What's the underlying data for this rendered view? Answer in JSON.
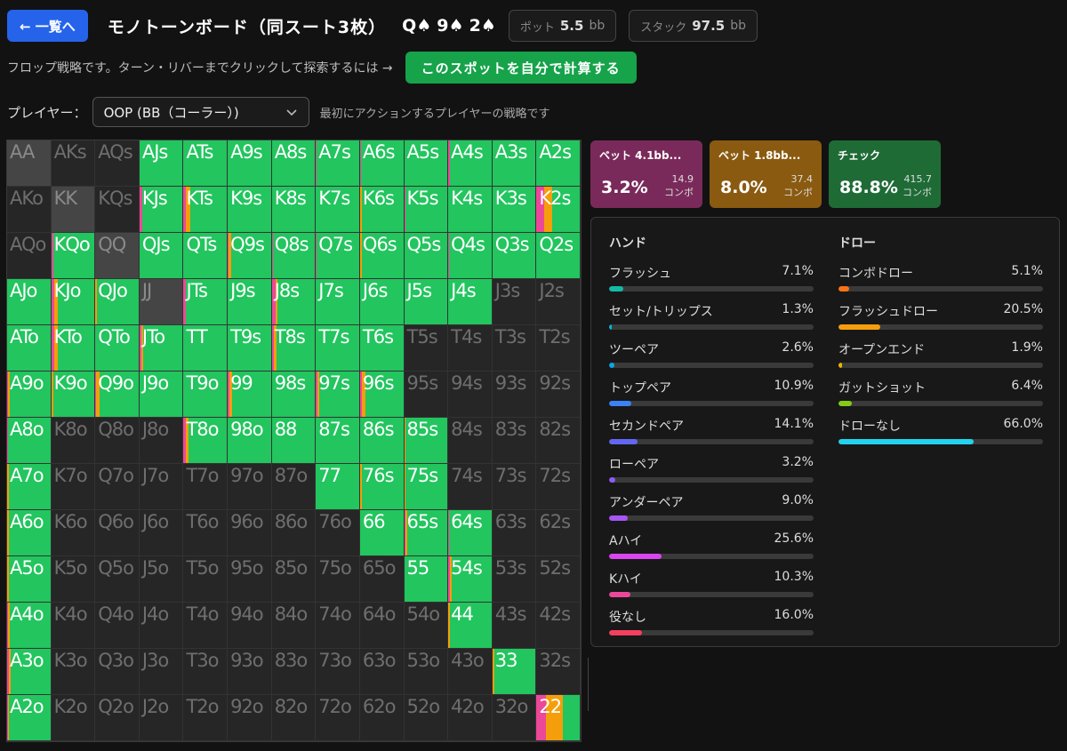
{
  "header": {
    "back_label": "← 一覧へ",
    "title": "モノトーンボード（同スート3枚）",
    "board": [
      {
        "rank": "Q",
        "suit": "♠"
      },
      {
        "rank": "9",
        "suit": "♠"
      },
      {
        "rank": "2",
        "suit": "♠"
      }
    ],
    "pot_label": "ポット",
    "pot_value": "5.5",
    "pot_unit": "bb",
    "stack_label": "スタック",
    "stack_value": "97.5",
    "stack_unit": "bb"
  },
  "hint": {
    "text": "フロップ戦略です。ターン・リバーまでクリックして探索するには →",
    "button_label": "このスポットを自分で計算する"
  },
  "player": {
    "label": "プレイヤー：",
    "selected": "OOP (BB（コーラー）)",
    "description": "最初にアクションするプレイヤーの戦略です"
  },
  "colors": {
    "bet_large": "#ec4899",
    "bet_small": "#f59e0b",
    "check": "#22c55e"
  },
  "actions": [
    {
      "name": "ベット 4.1bb...",
      "pct": "3.2%",
      "combos": "14.9",
      "combo_label": "コンボ",
      "bg": "#7a2a5a"
    },
    {
      "name": "ベット 1.8bb...",
      "pct": "8.0%",
      "combos": "37.4",
      "combo_label": "コンボ",
      "bg": "#8a5a10"
    },
    {
      "name": "チェック",
      "pct": "88.8%",
      "combos": "415.7",
      "combo_label": "コンボ",
      "bg": "#1f6b36"
    }
  ],
  "hand_stats": {
    "title": "ハンド",
    "items": [
      {
        "label": "フラッシュ",
        "pct": "7.1%",
        "value": 7.1,
        "color": "#14b8a6"
      },
      {
        "label": "セット/トリップス",
        "pct": "1.3%",
        "value": 1.3,
        "color": "#06b6d4"
      },
      {
        "label": "ツーペア",
        "pct": "2.6%",
        "value": 2.6,
        "color": "#0ea5e9"
      },
      {
        "label": "トップペア",
        "pct": "10.9%",
        "value": 10.9,
        "color": "#3b82f6"
      },
      {
        "label": "セカンドペア",
        "pct": "14.1%",
        "value": 14.1,
        "color": "#6366f1"
      },
      {
        "label": "ローペア",
        "pct": "3.2%",
        "value": 3.2,
        "color": "#8b5cf6"
      },
      {
        "label": "アンダーペア",
        "pct": "9.0%",
        "value": 9.0,
        "color": "#a855f7"
      },
      {
        "label": "Aハイ",
        "pct": "25.6%",
        "value": 25.6,
        "color": "#d946ef"
      },
      {
        "label": "Kハイ",
        "pct": "10.3%",
        "value": 10.3,
        "color": "#ec4899"
      },
      {
        "label": "役なし",
        "pct": "16.0%",
        "value": 16.0,
        "color": "#f43f5e"
      }
    ]
  },
  "draw_stats": {
    "title": "ドロー",
    "items": [
      {
        "label": "コンボドロー",
        "pct": "5.1%",
        "value": 5.1,
        "color": "#f97316"
      },
      {
        "label": "フラッシュドロー",
        "pct": "20.5%",
        "value": 20.5,
        "color": "#f59e0b"
      },
      {
        "label": "オープンエンド",
        "pct": "1.9%",
        "value": 1.9,
        "color": "#eab308"
      },
      {
        "label": "ガットショット",
        "pct": "6.4%",
        "value": 6.4,
        "color": "#84cc16"
      },
      {
        "label": "ドローなし",
        "pct": "66.0%",
        "value": 66.0,
        "color": "#22d3ee"
      }
    ]
  },
  "hands": [
    [
      "AA",
      "AKs",
      "AQs",
      "AJs",
      "ATs",
      "A9s",
      "A8s",
      "A7s",
      "A6s",
      "A5s",
      "A4s",
      "A3s",
      "A2s"
    ],
    [
      "AKo",
      "KK",
      "KQs",
      "KJs",
      "KTs",
      "K9s",
      "K8s",
      "K7s",
      "K6s",
      "K5s",
      "K4s",
      "K3s",
      "K2s"
    ],
    [
      "AQo",
      "KQo",
      "QQ",
      "QJs",
      "QTs",
      "Q9s",
      "Q8s",
      "Q7s",
      "Q6s",
      "Q5s",
      "Q4s",
      "Q3s",
      "Q2s"
    ],
    [
      "AJo",
      "KJo",
      "QJo",
      "JJ",
      "JTs",
      "J9s",
      "J8s",
      "J7s",
      "J6s",
      "J5s",
      "J4s",
      "J3s",
      "J2s"
    ],
    [
      "ATo",
      "KTo",
      "QTo",
      "JTo",
      "TT",
      "T9s",
      "T8s",
      "T7s",
      "T6s",
      "T5s",
      "T4s",
      "T3s",
      "T2s"
    ],
    [
      "A9o",
      "K9o",
      "Q9o",
      "J9o",
      "T9o",
      "99",
      "98s",
      "97s",
      "96s",
      "95s",
      "94s",
      "93s",
      "92s"
    ],
    [
      "A8o",
      "K8o",
      "Q8o",
      "J8o",
      "T8o",
      "98o",
      "88",
      "87s",
      "86s",
      "85s",
      "84s",
      "83s",
      "82s"
    ],
    [
      "A7o",
      "K7o",
      "Q7o",
      "J7o",
      "T7o",
      "97o",
      "87o",
      "77",
      "76s",
      "75s",
      "74s",
      "73s",
      "72s"
    ],
    [
      "A6o",
      "K6o",
      "Q6o",
      "J6o",
      "T6o",
      "96o",
      "86o",
      "76o",
      "66",
      "65s",
      "64s",
      "63s",
      "62s"
    ],
    [
      "A5o",
      "K5o",
      "Q5o",
      "J5o",
      "T5o",
      "95o",
      "85o",
      "75o",
      "65o",
      "55",
      "54s",
      "53s",
      "52s"
    ],
    [
      "A4o",
      "K4o",
      "Q4o",
      "J4o",
      "T4o",
      "94o",
      "84o",
      "74o",
      "64o",
      "54o",
      "44",
      "43s",
      "42s"
    ],
    [
      "A3o",
      "K3o",
      "Q3o",
      "J3o",
      "T3o",
      "93o",
      "83o",
      "73o",
      "63o",
      "53o",
      "43o",
      "33",
      "32s"
    ],
    [
      "A2o",
      "K2o",
      "Q2o",
      "J2o",
      "T2o",
      "92o",
      "82o",
      "72o",
      "62o",
      "52o",
      "42o",
      "32o",
      "22"
    ]
  ],
  "strategy": [
    [
      [
        0,
        0,
        0
      ],
      [
        0,
        0,
        0
      ],
      [
        0,
        0,
        0
      ],
      [
        0,
        0,
        100
      ],
      [
        0,
        0,
        100
      ],
      [
        0,
        0,
        100
      ],
      [
        0,
        0,
        100
      ],
      [
        2,
        0,
        98
      ],
      [
        2,
        0,
        98
      ],
      [
        0,
        0,
        100
      ],
      [
        4,
        0,
        96
      ],
      [
        0,
        0,
        100
      ],
      [
        0,
        0,
        100
      ]
    ],
    [
      [
        0,
        0,
        0
      ],
      [
        0,
        0,
        0
      ],
      [
        0,
        0,
        0
      ],
      [
        6,
        0,
        94
      ],
      [
        6,
        10,
        84
      ],
      [
        0,
        0,
        100
      ],
      [
        0,
        0,
        100
      ],
      [
        0,
        0,
        100
      ],
      [
        0,
        4,
        96
      ],
      [
        2,
        0,
        98
      ],
      [
        0,
        0,
        100
      ],
      [
        0,
        0,
        100
      ],
      [
        18,
        18,
        64
      ]
    ],
    [
      [
        0,
        0,
        0
      ],
      [
        4,
        0,
        96
      ],
      [
        0,
        0,
        0
      ],
      [
        0,
        0,
        100
      ],
      [
        0,
        0,
        100
      ],
      [
        2,
        6,
        92
      ],
      [
        2,
        0,
        98
      ],
      [
        2,
        0,
        98
      ],
      [
        0,
        4,
        96
      ],
      [
        0,
        0,
        100
      ],
      [
        2,
        0,
        98
      ],
      [
        0,
        0,
        100
      ],
      [
        0,
        0,
        100
      ]
    ],
    [
      [
        0,
        0,
        100
      ],
      [
        6,
        10,
        84
      ],
      [
        0,
        4,
        96
      ],
      [
        0,
        0,
        0
      ],
      [
        6,
        0,
        94
      ],
      [
        0,
        0,
        100
      ],
      [
        8,
        6,
        86
      ],
      [
        0,
        0,
        100
      ],
      [
        0,
        0,
        100
      ],
      [
        0,
        0,
        100
      ],
      [
        0,
        0,
        100
      ],
      [
        0,
        0,
        0
      ],
      [
        0,
        0,
        0
      ]
    ],
    [
      [
        0,
        0,
        100
      ],
      [
        6,
        10,
        84
      ],
      [
        0,
        0,
        100
      ],
      [
        4,
        4,
        92
      ],
      [
        0,
        0,
        100
      ],
      [
        0,
        0,
        100
      ],
      [
        4,
        6,
        90
      ],
      [
        0,
        0,
        100
      ],
      [
        0,
        0,
        100
      ],
      [
        0,
        0,
        0
      ],
      [
        0,
        0,
        0
      ],
      [
        0,
        0,
        0
      ],
      [
        0,
        0,
        0
      ]
    ],
    [
      [
        2,
        4,
        94
      ],
      [
        0,
        4,
        96
      ],
      [
        2,
        8,
        90
      ],
      [
        0,
        0,
        100
      ],
      [
        0,
        0,
        100
      ],
      [
        4,
        6,
        90
      ],
      [
        0,
        0,
        100
      ],
      [
        4,
        4,
        92
      ],
      [
        4,
        8,
        88
      ],
      [
        0,
        0,
        0
      ],
      [
        0,
        0,
        0
      ],
      [
        0,
        0,
        0
      ],
      [
        0,
        0,
        0
      ]
    ],
    [
      [
        2,
        0,
        98
      ],
      [
        0,
        0,
        0
      ],
      [
        0,
        0,
        0
      ],
      [
        0,
        0,
        0
      ],
      [
        6,
        6,
        88
      ],
      [
        0,
        0,
        100
      ],
      [
        0,
        0,
        100
      ],
      [
        0,
        0,
        100
      ],
      [
        0,
        0,
        100
      ],
      [
        0,
        4,
        96
      ],
      [
        0,
        0,
        0
      ],
      [
        0,
        0,
        0
      ],
      [
        0,
        0,
        0
      ]
    ],
    [
      [
        0,
        4,
        96
      ],
      [
        0,
        0,
        0
      ],
      [
        0,
        0,
        0
      ],
      [
        0,
        0,
        0
      ],
      [
        0,
        0,
        0
      ],
      [
        0,
        0,
        0
      ],
      [
        0,
        0,
        0
      ],
      [
        0,
        0,
        100
      ],
      [
        0,
        4,
        96
      ],
      [
        0,
        4,
        96
      ],
      [
        0,
        0,
        0
      ],
      [
        0,
        0,
        0
      ],
      [
        0,
        0,
        0
      ]
    ],
    [
      [
        0,
        4,
        96
      ],
      [
        0,
        0,
        0
      ],
      [
        0,
        0,
        0
      ],
      [
        0,
        0,
        0
      ],
      [
        0,
        0,
        0
      ],
      [
        0,
        0,
        0
      ],
      [
        0,
        0,
        0
      ],
      [
        0,
        0,
        0
      ],
      [
        0,
        0,
        100
      ],
      [
        4,
        4,
        92
      ],
      [
        2,
        0,
        98
      ],
      [
        0,
        0,
        0
      ],
      [
        0,
        0,
        0
      ]
    ],
    [
      [
        0,
        4,
        96
      ],
      [
        0,
        0,
        0
      ],
      [
        0,
        0,
        0
      ],
      [
        0,
        0,
        0
      ],
      [
        0,
        0,
        0
      ],
      [
        0,
        0,
        0
      ],
      [
        0,
        0,
        0
      ],
      [
        0,
        0,
        0
      ],
      [
        0,
        0,
        0
      ],
      [
        0,
        0,
        100
      ],
      [
        4,
        4,
        92
      ],
      [
        0,
        0,
        0
      ],
      [
        0,
        0,
        0
      ]
    ],
    [
      [
        2,
        4,
        94
      ],
      [
        0,
        0,
        0
      ],
      [
        0,
        0,
        0
      ],
      [
        0,
        0,
        0
      ],
      [
        0,
        0,
        0
      ],
      [
        0,
        0,
        0
      ],
      [
        0,
        0,
        0
      ],
      [
        0,
        0,
        0
      ],
      [
        0,
        0,
        0
      ],
      [
        0,
        0,
        0
      ],
      [
        0,
        4,
        96
      ],
      [
        0,
        0,
        0
      ],
      [
        0,
        0,
        0
      ]
    ],
    [
      [
        4,
        4,
        92
      ],
      [
        0,
        0,
        0
      ],
      [
        0,
        0,
        0
      ],
      [
        0,
        0,
        0
      ],
      [
        0,
        0,
        0
      ],
      [
        0,
        0,
        0
      ],
      [
        0,
        0,
        0
      ],
      [
        0,
        0,
        0
      ],
      [
        0,
        0,
        0
      ],
      [
        0,
        0,
        0
      ],
      [
        0,
        0,
        0
      ],
      [
        0,
        4,
        96
      ],
      [
        0,
        0,
        0
      ]
    ],
    [
      [
        2,
        2,
        96
      ],
      [
        0,
        0,
        0
      ],
      [
        0,
        0,
        0
      ],
      [
        0,
        0,
        0
      ],
      [
        0,
        0,
        0
      ],
      [
        0,
        0,
        0
      ],
      [
        0,
        0,
        0
      ],
      [
        0,
        0,
        0
      ],
      [
        0,
        0,
        0
      ],
      [
        0,
        0,
        0
      ],
      [
        0,
        0,
        0
      ],
      [
        0,
        0,
        0
      ],
      [
        22,
        38,
        40
      ]
    ]
  ]
}
